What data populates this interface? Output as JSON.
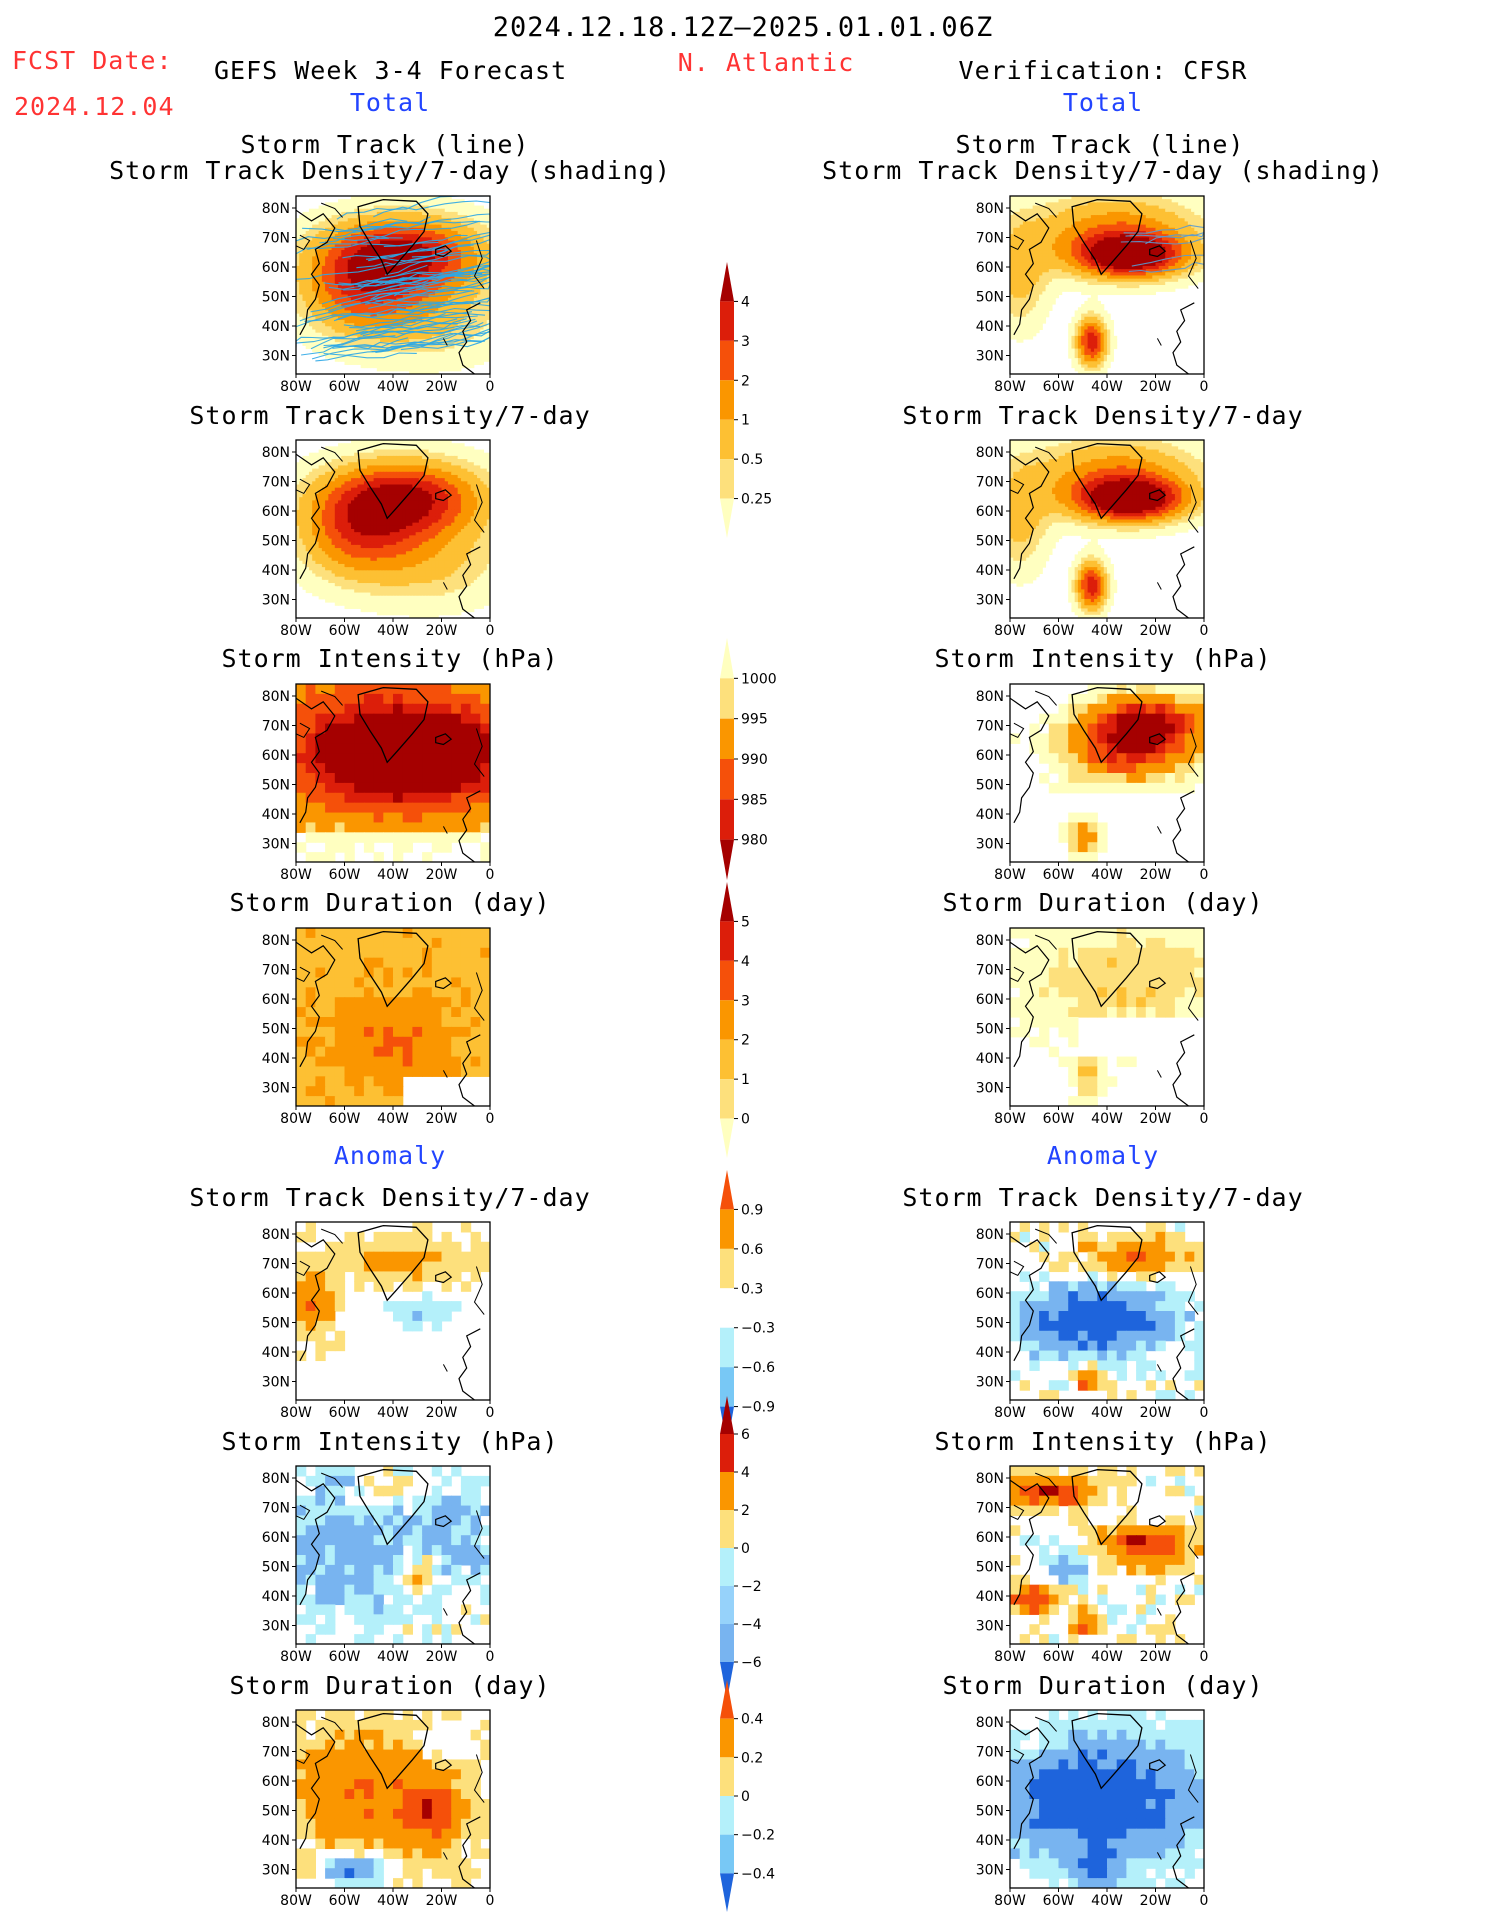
{
  "header": {
    "date_range": "2024.12.18.12Z–2025.01.01.06Z",
    "fcst_label": "FCST Date:",
    "fcst_date": "2024.12.04",
    "forecast_title": "GEFS Week 3-4 Forecast",
    "region": "N. Atlantic",
    "verification": "Verification: CFSR"
  },
  "sections": {
    "total_label": "Total",
    "anomaly_label": "Anomaly"
  },
  "panel_titles": {
    "track_line": "Storm Track (line)",
    "track_shading": "Storm Track Density/7-day (shading)",
    "density": "Storm Track Density/7-day",
    "intensity": "Storm Intensity (hPa)",
    "duration": "Storm Duration (day)"
  },
  "axes": {
    "lat_ticks": [
      "80N",
      "70N",
      "60N",
      "50N",
      "40N",
      "30N"
    ],
    "lon_ticks": [
      "80W",
      "60W",
      "40W",
      "20W",
      "0"
    ]
  },
  "colorbars": [
    {
      "id": "density_total",
      "labels": [
        "4",
        "3",
        "2",
        "1",
        "0.5",
        "0.25"
      ],
      "colors": [
        "#a50000",
        "#dc1e0a",
        "#f5500a",
        "#fa9600",
        "#fdc033",
        "#fde07c",
        "#ffffc0"
      ]
    },
    {
      "id": "intensity_total",
      "labels": [
        "1000",
        "995",
        "990",
        "985",
        "980"
      ],
      "colors": [
        "#ffffc0",
        "#fde07c",
        "#fa9600",
        "#f5500a",
        "#dc1e0a",
        "#a50000"
      ]
    },
    {
      "id": "duration_total",
      "labels": [
        "5",
        "4",
        "3",
        "2",
        "1",
        "0"
      ],
      "colors": [
        "#a50000",
        "#dc1e0a",
        "#f5500a",
        "#fa9600",
        "#fdc033",
        "#fde07c",
        "#ffffc0"
      ]
    },
    {
      "id": "density_anom",
      "labels": [
        "0.9",
        "0.6",
        "0.3",
        "−0.3",
        "−0.6",
        "−0.9"
      ],
      "colors": [
        "#f5500a",
        "#fa9600",
        "#fde07c",
        "#ffffff",
        "#b4f0fa",
        "#78c8f5",
        "#1e64dc"
      ]
    },
    {
      "id": "intensity_anom",
      "labels": [
        "6",
        "4",
        "2",
        "0",
        "−2",
        "−4",
        "−6"
      ],
      "colors": [
        "#a50000",
        "#dc1e0a",
        "#fa9600",
        "#fde07c",
        "#b4f0fa",
        "#96d2fa",
        "#78b4f0",
        "#1e64dc"
      ]
    },
    {
      "id": "duration_anom",
      "labels": [
        "0.4",
        "0.2",
        "0",
        "−0.2",
        "−0.4"
      ],
      "colors": [
        "#f5500a",
        "#fa9600",
        "#fde07c",
        "#b4f0fa",
        "#78c8f5",
        "#1e64dc"
      ]
    }
  ],
  "colors": {
    "title_red": "#ff3333",
    "section_blue": "#2244ff",
    "track_line": "#2ca7e6",
    "verif_track_line": "#5a9ad0",
    "coast": "#000000"
  },
  "chart_data": [
    {
      "type": "heatmap",
      "panel": "GEFS total storm track (line) over track density",
      "title": "Storm Track (line) / Storm Track Density/7-day (shading)",
      "x_range": [
        "80W",
        "0"
      ],
      "y_range": [
        "25N",
        "85N"
      ],
      "max_region": "60N-70N, 30W-50W",
      "max_value_bin": "3-4"
    },
    {
      "type": "heatmap",
      "panel": "CFSR total storm track (line) over track density",
      "title": "Storm Track (line) / Storm Track Density/7-day (shading)",
      "x_range": [
        "80W",
        "0"
      ],
      "y_range": [
        "25N",
        "85N"
      ],
      "max_region": "60N-70N, 20W-40W; secondary 30N-40N, 40W",
      "max_value_bin": ">4"
    },
    {
      "type": "heatmap",
      "panel": "GEFS total storm track density",
      "title": "Storm Track Density/7-day",
      "units": "per 7 days",
      "levels": [
        0.25,
        0.5,
        1,
        2,
        3,
        4
      ]
    },
    {
      "type": "heatmap",
      "panel": "CFSR total storm track density",
      "title": "Storm Track Density/7-day",
      "units": "per 7 days",
      "levels": [
        0.25,
        0.5,
        1,
        2,
        3,
        4
      ]
    },
    {
      "type": "heatmap",
      "panel": "GEFS total storm intensity",
      "title": "Storm Intensity (hPa)",
      "levels": [
        980,
        985,
        990,
        995,
        1000
      ]
    },
    {
      "type": "heatmap",
      "panel": "CFSR total storm intensity",
      "title": "Storm Intensity (hPa)",
      "levels": [
        980,
        985,
        990,
        995,
        1000
      ]
    },
    {
      "type": "heatmap",
      "panel": "GEFS total storm duration",
      "title": "Storm Duration (day)",
      "levels": [
        0,
        1,
        2,
        3,
        4,
        5
      ]
    },
    {
      "type": "heatmap",
      "panel": "CFSR total storm duration",
      "title": "Storm Duration (day)",
      "levels": [
        0,
        1,
        2,
        3,
        4,
        5
      ]
    },
    {
      "type": "heatmap",
      "panel": "GEFS anomaly storm track density",
      "title": "Storm Track Density/7-day",
      "levels": [
        -0.9,
        -0.6,
        -0.3,
        0.3,
        0.6,
        0.9
      ]
    },
    {
      "type": "heatmap",
      "panel": "CFSR anomaly storm track density",
      "title": "Storm Track Density/7-day",
      "levels": [
        -0.9,
        -0.6,
        -0.3,
        0.3,
        0.6,
        0.9
      ]
    },
    {
      "type": "heatmap",
      "panel": "GEFS anomaly storm intensity",
      "title": "Storm Intensity (hPa)",
      "levels": [
        -6,
        -4,
        -2,
        0,
        2,
        4,
        6
      ]
    },
    {
      "type": "heatmap",
      "panel": "CFSR anomaly storm intensity",
      "title": "Storm Intensity (hPa)",
      "levels": [
        -6,
        -4,
        -2,
        0,
        2,
        4,
        6
      ]
    },
    {
      "type": "heatmap",
      "panel": "GEFS anomaly storm duration",
      "title": "Storm Duration (day)",
      "levels": [
        -0.4,
        -0.2,
        0,
        0.2,
        0.4
      ]
    },
    {
      "type": "heatmap",
      "panel": "CFSR anomaly storm duration",
      "title": "Storm Duration (day)",
      "levels": [
        -0.4,
        -0.2,
        0,
        0.2,
        0.4
      ]
    }
  ]
}
